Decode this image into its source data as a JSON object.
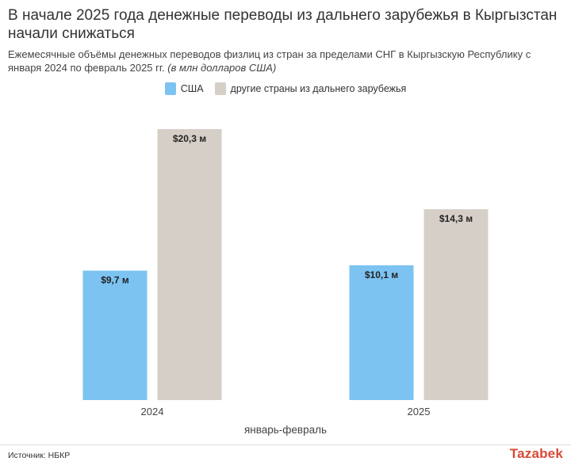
{
  "title": "В начале 2025 года денежные переводы из дальнего зарубежья в Кыргызстан начали снижаться",
  "subtitle": "Ежемесячные объёмы денежных переводов физлиц из стран за пределами СНГ в Кыргызскую Республику с января 2024 по февраль 2025 гг.",
  "subtitle_unit": "(в млн долларов США)",
  "source": "Источник: НБКР",
  "logo": "Tazabek",
  "chart_data": {
    "type": "bar",
    "categories": [
      "2024",
      "2025"
    ],
    "series": [
      {
        "name": "США",
        "color": "#7cc3f2",
        "values": [
          9.7,
          10.1
        ],
        "labels": [
          "$9,7 м",
          "$10,1 м"
        ]
      },
      {
        "name": "другие страны из дальнего зарубежья",
        "color": "#d6cfc7",
        "values": [
          20.3,
          14.3
        ],
        "labels": [
          "$20,3 м",
          "$14,3 м"
        ]
      }
    ],
    "xlabel": "январь-февраль",
    "ylabel": "",
    "ylim": [
      0,
      20.3
    ],
    "grid": false,
    "legend": "top-center"
  }
}
